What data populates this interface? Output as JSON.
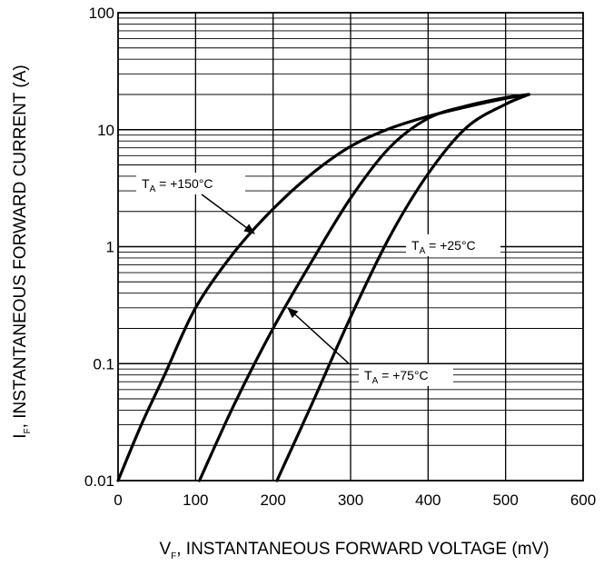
{
  "chart_data": {
    "type": "line",
    "title": "",
    "xlabel": {
      "main": "V",
      "sub": "F",
      "rest": ", INSTANTANEOUS FORWARD VOLTAGE (mV)"
    },
    "ylabel": {
      "main": "I",
      "sub": "F",
      "rest": ", INSTANTANEOUS FORWARD CURRENT (A)"
    },
    "xlim": [
      0,
      600
    ],
    "ylim": [
      0.01,
      100
    ],
    "yscale": "log",
    "grid": true,
    "x_ticks": [
      "0",
      "100",
      "200",
      "300",
      "400",
      "500",
      "600"
    ],
    "y_ticks": [
      "0.01",
      "0.1",
      "1",
      "10",
      "100"
    ],
    "series": [
      {
        "name": "T_A = +150°C",
        "points": [
          [
            0,
            0.01
          ],
          [
            30,
            0.03
          ],
          [
            60,
            0.08
          ],
          [
            100,
            0.3
          ],
          [
            150,
            0.9
          ],
          [
            200,
            2.1
          ],
          [
            250,
            4.2
          ],
          [
            300,
            7.2
          ],
          [
            350,
            10.2
          ],
          [
            400,
            13
          ],
          [
            450,
            15.7
          ],
          [
            500,
            18.5
          ],
          [
            530,
            20
          ]
        ]
      },
      {
        "name": "T_A = +75°C",
        "points": [
          [
            105,
            0.01
          ],
          [
            150,
            0.045
          ],
          [
            200,
            0.2
          ],
          [
            250,
            0.75
          ],
          [
            300,
            2.6
          ],
          [
            350,
            7
          ],
          [
            400,
            12.5
          ],
          [
            450,
            16
          ],
          [
            500,
            18.8
          ],
          [
            530,
            20
          ]
        ]
      },
      {
        "name": "T_A = +25°C",
        "points": [
          [
            205,
            0.01
          ],
          [
            250,
            0.045
          ],
          [
            300,
            0.25
          ],
          [
            350,
            1.2
          ],
          [
            400,
            4.2
          ],
          [
            450,
            10.5
          ],
          [
            500,
            16.5
          ],
          [
            530,
            20
          ]
        ]
      }
    ],
    "annotations": [
      {
        "main": "T",
        "sub": "A",
        "rest": " = +150°C"
      },
      {
        "main": "T",
        "sub": "A",
        "rest": " = +25°C"
      },
      {
        "main": "T",
        "sub": "A",
        "rest": " = +75°C"
      }
    ]
  }
}
